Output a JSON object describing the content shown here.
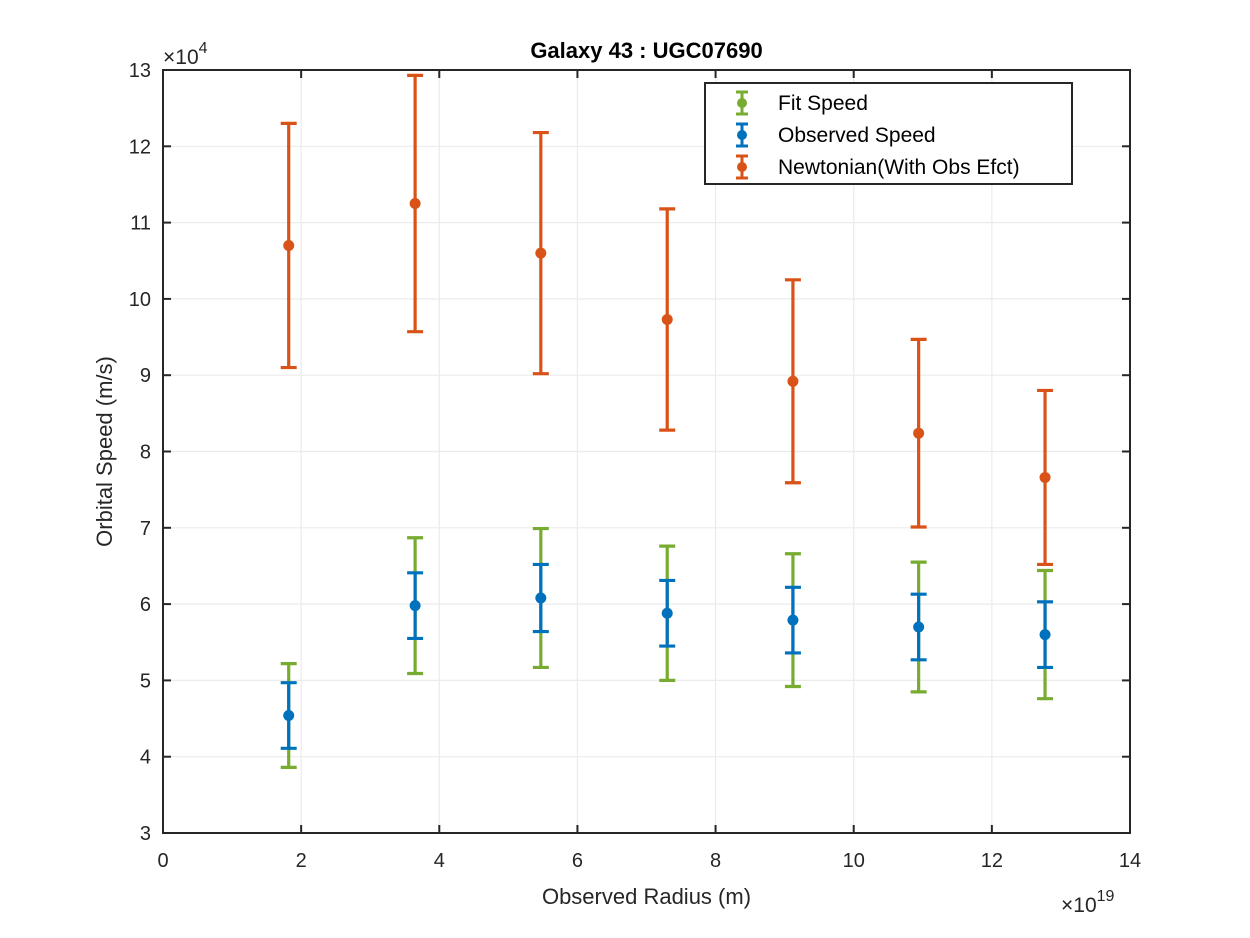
{
  "chart_data": {
    "type": "scatter",
    "title": "Galaxy 43 : UGC07690",
    "xlabel": "Observed Radius (m)",
    "ylabel": "Orbital Speed (m/s)",
    "x_exponent": {
      "base": "×10",
      "power": "19"
    },
    "y_exponent": {
      "base": "×10",
      "power": "4"
    },
    "xlim": [
      0,
      14
    ],
    "ylim": [
      3,
      13
    ],
    "x_ticks": [
      0,
      2,
      4,
      6,
      8,
      10,
      12,
      14
    ],
    "y_ticks": [
      3,
      4,
      5,
      6,
      7,
      8,
      9,
      10,
      11,
      12,
      13
    ],
    "x_tick_labels": [
      "0",
      "2",
      "4",
      "6",
      "8",
      "10",
      "12",
      "14"
    ],
    "y_tick_labels": [
      "3",
      "4",
      "5",
      "6",
      "7",
      "8",
      "9",
      "10",
      "11",
      "12",
      "13"
    ],
    "grid": true,
    "legend_position": "top-right",
    "colors": {
      "axis": "#262626",
      "grid": "#ebebeb",
      "legend_border": "#262626"
    },
    "series": [
      {
        "name": "Fit Speed",
        "color": "#77ac30",
        "x": [
          1.82,
          3.65,
          5.47,
          7.3,
          9.12,
          10.94,
          12.77
        ],
        "y": [
          4.54,
          5.98,
          6.08,
          5.88,
          5.79,
          5.7,
          5.6
        ],
        "err_low": [
          0.68,
          0.89,
          0.91,
          0.88,
          0.87,
          0.85,
          0.84
        ],
        "err_high": [
          0.68,
          0.89,
          0.91,
          0.88,
          0.87,
          0.85,
          0.84
        ],
        "show_marker": false
      },
      {
        "name": "Observed Speed",
        "color": "#0072bd",
        "x": [
          1.82,
          3.65,
          5.47,
          7.3,
          9.12,
          10.94,
          12.77
        ],
        "y": [
          4.54,
          5.98,
          6.08,
          5.88,
          5.79,
          5.7,
          5.6
        ],
        "err_low": [
          0.43,
          0.43,
          0.44,
          0.43,
          0.43,
          0.43,
          0.43
        ],
        "err_high": [
          0.43,
          0.43,
          0.44,
          0.43,
          0.43,
          0.43,
          0.43
        ],
        "show_marker": true
      },
      {
        "name": "Newtonian(With Obs Efct)",
        "color": "#d95319",
        "x": [
          1.82,
          3.65,
          5.47,
          7.3,
          9.12,
          10.94,
          12.77
        ],
        "y": [
          10.7,
          11.25,
          10.6,
          9.73,
          8.92,
          8.24,
          7.66
        ],
        "err_low": [
          1.6,
          1.68,
          1.58,
          1.45,
          1.33,
          1.23,
          1.14
        ],
        "err_high": [
          1.6,
          1.68,
          1.58,
          1.45,
          1.33,
          1.23,
          1.14
        ],
        "show_marker": true
      }
    ]
  }
}
